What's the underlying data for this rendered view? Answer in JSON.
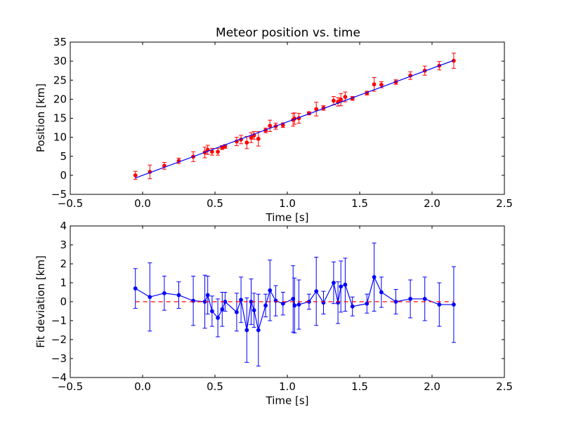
{
  "chart_data": [
    {
      "type": "scatter",
      "title": "Meteor position vs. time",
      "xlabel": "Time [s]",
      "ylabel": "Position [km]",
      "xlim": [
        -0.5,
        2.5
      ],
      "ylim": [
        -5,
        35
      ],
      "xticks": [
        "−0.5",
        "0.0",
        "0.5",
        "1.0",
        "1.5",
        "2.0",
        "2.5"
      ],
      "yticks": [
        "−5",
        "0",
        "5",
        "10",
        "15",
        "20",
        "25",
        "30",
        "35"
      ],
      "grid": false,
      "series": [
        {
          "kind": "points-with-errorbars",
          "color": "#ff0000",
          "x": [
            -0.05,
            0.05,
            0.15,
            0.25,
            0.35,
            0.43,
            0.45,
            0.48,
            0.52,
            0.55,
            0.57,
            0.65,
            0.68,
            0.72,
            0.75,
            0.77,
            0.8,
            0.85,
            0.88,
            0.92,
            0.97,
            1.04,
            1.05,
            1.08,
            1.15,
            1.2,
            1.25,
            1.32,
            1.35,
            1.37,
            1.4,
            1.45,
            1.55,
            1.6,
            1.65,
            1.75,
            1.85,
            1.95,
            2.05,
            2.15
          ],
          "y": [
            0.0,
            0.9,
            2.5,
            3.8,
            4.9,
            6.0,
            6.7,
            6.2,
            6.2,
            7.3,
            7.6,
            8.9,
            9.4,
            8.6,
            9.9,
            10.5,
            9.6,
            11.8,
            13.0,
            12.9,
            13.2,
            14.6,
            14.9,
            15.0,
            16.3,
            17.4,
            17.7,
            19.6,
            19.3,
            19.9,
            20.6,
            20.2,
            21.6,
            23.9,
            23.8,
            24.5,
            26.2,
            27.5,
            28.8,
            30.1
          ],
          "err": [
            1.05,
            1.8,
            0.9,
            0.7,
            1.3,
            1.4,
            1.2,
            0.9,
            0.9,
            0.5,
            0.5,
            1.1,
            1.1,
            1.6,
            1.3,
            1.0,
            1.9,
            0.6,
            1.5,
            0.8,
            0.6,
            1.7,
            1.5,
            1.3,
            0.4,
            1.8,
            0.6,
            1.1,
            1.1,
            1.6,
            1.3,
            0.5,
            0.5,
            1.8,
            0.8,
            0.6,
            1.0,
            1.2,
            1.1,
            2.0
          ]
        },
        {
          "kind": "fit-line",
          "color": "#0000ff",
          "x": [
            -0.05,
            2.15
          ],
          "y": [
            -0.7,
            30.2
          ]
        }
      ]
    },
    {
      "type": "line",
      "title": "",
      "xlabel": "Time [s]",
      "ylabel": "Fit deviation [km]",
      "xlim": [
        -0.5,
        2.5
      ],
      "ylim": [
        -4,
        4
      ],
      "xticks": [
        "−0.5",
        "0.0",
        "0.5",
        "1.0",
        "1.5",
        "2.0",
        "2.5"
      ],
      "yticks": [
        "−4",
        "−3",
        "−2",
        "−1",
        "0",
        "1",
        "2",
        "3",
        "4"
      ],
      "grid": false,
      "series": [
        {
          "kind": "points-with-errorbars",
          "color": "#0000ff",
          "x": [
            -0.05,
            0.05,
            0.15,
            0.25,
            0.35,
            0.43,
            0.45,
            0.48,
            0.52,
            0.55,
            0.57,
            0.65,
            0.68,
            0.72,
            0.75,
            0.77,
            0.8,
            0.85,
            0.88,
            0.92,
            0.97,
            1.04,
            1.05,
            1.08,
            1.15,
            1.2,
            1.25,
            1.32,
            1.35,
            1.37,
            1.4,
            1.45,
            1.55,
            1.6,
            1.65,
            1.75,
            1.85,
            1.95,
            2.05,
            2.15
          ],
          "y": [
            0.7,
            0.25,
            0.45,
            0.35,
            0.05,
            0.0,
            0.35,
            -0.5,
            -0.85,
            -0.4,
            0.0,
            -0.55,
            0.1,
            -1.5,
            0.0,
            -0.45,
            -1.5,
            -0.2,
            0.6,
            0.05,
            -0.1,
            0.15,
            -0.2,
            -0.15,
            0.0,
            0.55,
            -0.05,
            1.0,
            -0.05,
            0.8,
            0.9,
            -0.25,
            -0.1,
            1.3,
            0.5,
            0.0,
            0.15,
            0.15,
            -0.15,
            -0.15
          ],
          "err": [
            1.05,
            1.8,
            0.9,
            0.7,
            1.3,
            1.4,
            1.0,
            0.8,
            1.0,
            0.9,
            0.5,
            1.0,
            1.2,
            1.7,
            1.2,
            0.9,
            1.9,
            0.6,
            1.6,
            0.8,
            0.6,
            1.75,
            1.45,
            1.3,
            0.4,
            1.8,
            0.6,
            1.1,
            1.1,
            1.35,
            1.4,
            0.5,
            0.5,
            1.8,
            0.8,
            0.65,
            1.0,
            1.15,
            1.15,
            2.0
          ]
        },
        {
          "kind": "zero-line",
          "color": "#ff0000",
          "style": "dashed",
          "x": [
            -0.05,
            2.15
          ],
          "y": [
            0,
            0
          ]
        }
      ]
    }
  ]
}
